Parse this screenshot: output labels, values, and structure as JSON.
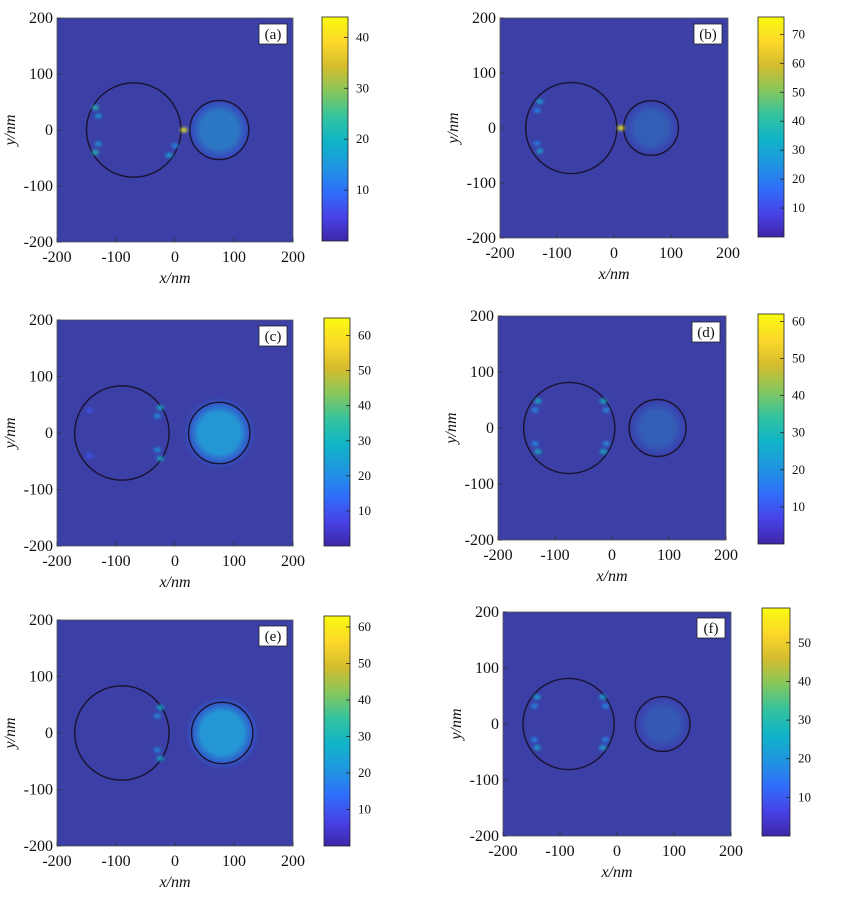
{
  "chart_data": [
    {
      "type": "heatmap",
      "panel": "(a)",
      "xlabel": "x/nm",
      "ylabel": "y/nm",
      "xlim": [
        -200,
        200
      ],
      "ylim": [
        -200,
        200
      ],
      "xticks": [
        -200,
        -100,
        0,
        100,
        200
      ],
      "yticks": [
        -200,
        -100,
        0,
        100,
        200
      ],
      "colorbar": {
        "min": 0,
        "max": 44,
        "ticks": [
          10,
          20,
          30,
          40
        ]
      },
      "circles": [
        {
          "cx": -70,
          "cy": 0,
          "r": 80
        },
        {
          "cx": 75,
          "cy": 0,
          "r": 50
        }
      ],
      "hotspots": [
        {
          "x": -135,
          "y": 40,
          "v": 22
        },
        {
          "x": -130,
          "y": 25,
          "v": 16
        },
        {
          "x": -135,
          "y": -40,
          "v": 22
        },
        {
          "x": -130,
          "y": -25,
          "v": 16
        },
        {
          "x": -10,
          "y": -45,
          "v": 18
        },
        {
          "x": 0,
          "y": -28,
          "v": 14
        },
        {
          "x": 15,
          "y": 0,
          "v": 43
        }
      ],
      "glow": 9
    },
    {
      "type": "heatmap",
      "panel": "(b)",
      "xlabel": "x/nm",
      "ylabel": "y/nm",
      "xlim": [
        -200,
        200
      ],
      "ylim": [
        -200,
        200
      ],
      "xticks": [
        -200,
        -100,
        0,
        100,
        200
      ],
      "yticks": [
        -200,
        -100,
        0,
        100,
        200
      ],
      "colorbar": {
        "min": 0,
        "max": 76,
        "ticks": [
          10,
          20,
          30,
          40,
          50,
          60,
          70
        ]
      },
      "circles": [
        {
          "cx": -75,
          "cy": 0,
          "r": 80
        },
        {
          "cx": 65,
          "cy": 0,
          "r": 48
        }
      ],
      "hotspots": [
        {
          "x": -130,
          "y": 48,
          "v": 30
        },
        {
          "x": -135,
          "y": 32,
          "v": 22
        },
        {
          "x": -130,
          "y": -42,
          "v": 30
        },
        {
          "x": -135,
          "y": -28,
          "v": 22
        },
        {
          "x": 12,
          "y": 0,
          "v": 75
        }
      ],
      "glow": 5
    },
    {
      "type": "heatmap",
      "panel": "(c)",
      "xlabel": "x/nm",
      "ylabel": "y/nm",
      "xlim": [
        -200,
        200
      ],
      "ylim": [
        -200,
        200
      ],
      "xticks": [
        -200,
        -100,
        0,
        100,
        200
      ],
      "yticks": [
        -200,
        -100,
        0,
        100,
        200
      ],
      "colorbar": {
        "min": 0,
        "max": 65,
        "ticks": [
          10,
          20,
          30,
          40,
          50,
          60
        ]
      },
      "circles": [
        {
          "cx": -90,
          "cy": 0,
          "r": 80
        },
        {
          "cx": 75,
          "cy": 0,
          "r": 52
        }
      ],
      "hotspots": [
        {
          "x": -25,
          "y": 45,
          "v": 30
        },
        {
          "x": -30,
          "y": 30,
          "v": 22
        },
        {
          "x": -25,
          "y": -45,
          "v": 30
        },
        {
          "x": -30,
          "y": -30,
          "v": 22
        },
        {
          "x": -145,
          "y": 40,
          "v": 10
        },
        {
          "x": -145,
          "y": -40,
          "v": 10
        }
      ],
      "glow": 14
    },
    {
      "type": "heatmap",
      "panel": "(d)",
      "xlabel": "x/nm",
      "ylabel": "y/nm",
      "xlim": [
        -200,
        200
      ],
      "ylim": [
        -200,
        200
      ],
      "xticks": [
        -200,
        -100,
        0,
        100,
        200
      ],
      "yticks": [
        -200,
        -100,
        0,
        100,
        200
      ],
      "colorbar": {
        "min": 0,
        "max": 62,
        "ticks": [
          10,
          20,
          30,
          40,
          50,
          60
        ]
      },
      "circles": [
        {
          "cx": -75,
          "cy": 0,
          "r": 80
        },
        {
          "cx": 80,
          "cy": 0,
          "r": 50
        }
      ],
      "hotspots": [
        {
          "x": -130,
          "y": 48,
          "v": 28
        },
        {
          "x": -135,
          "y": 32,
          "v": 20
        },
        {
          "x": -130,
          "y": -42,
          "v": 28
        },
        {
          "x": -135,
          "y": -28,
          "v": 20
        },
        {
          "x": -15,
          "y": 48,
          "v": 28
        },
        {
          "x": -10,
          "y": 32,
          "v": 20
        },
        {
          "x": -15,
          "y": -42,
          "v": 28
        },
        {
          "x": -10,
          "y": -28,
          "v": 20
        }
      ],
      "glow": 5
    },
    {
      "type": "heatmap",
      "panel": "(e)",
      "xlabel": "x/nm",
      "ylabel": "y/nm",
      "xlim": [
        -200,
        200
      ],
      "ylim": [
        -200,
        200
      ],
      "xticks": [
        -200,
        -100,
        0,
        100,
        200
      ],
      "yticks": [
        -200,
        -100,
        0,
        100,
        200
      ],
      "colorbar": {
        "min": 0,
        "max": 63,
        "ticks": [
          10,
          20,
          30,
          40,
          50,
          60
        ]
      },
      "circles": [
        {
          "cx": -90,
          "cy": 0,
          "r": 80
        },
        {
          "cx": 80,
          "cy": 0,
          "r": 52
        }
      ],
      "hotspots": [
        {
          "x": -25,
          "y": 45,
          "v": 28
        },
        {
          "x": -30,
          "y": 30,
          "v": 20
        },
        {
          "x": -25,
          "y": -45,
          "v": 28
        },
        {
          "x": -30,
          "y": -30,
          "v": 20
        }
      ],
      "glow": 16
    },
    {
      "type": "heatmap",
      "panel": "(f)",
      "xlabel": "x/nm",
      "ylabel": "y/nm",
      "xlim": [
        -200,
        200
      ],
      "ylim": [
        -200,
        200
      ],
      "xticks": [
        -200,
        -100,
        0,
        100,
        200
      ],
      "yticks": [
        -200,
        -100,
        0,
        100,
        200
      ],
      "colorbar": {
        "min": 0,
        "max": 59,
        "ticks": [
          10,
          20,
          30,
          40,
          50
        ]
      },
      "circles": [
        {
          "cx": -85,
          "cy": 0,
          "r": 80
        },
        {
          "cx": 80,
          "cy": 0,
          "r": 48
        }
      ],
      "hotspots": [
        {
          "x": -140,
          "y": 48,
          "v": 24
        },
        {
          "x": -145,
          "y": 32,
          "v": 18
        },
        {
          "x": -140,
          "y": -42,
          "v": 24
        },
        {
          "x": -145,
          "y": -28,
          "v": 18
        },
        {
          "x": -25,
          "y": 48,
          "v": 24
        },
        {
          "x": -20,
          "y": 32,
          "v": 18
        },
        {
          "x": -25,
          "y": -42,
          "v": 24
        },
        {
          "x": -20,
          "y": -28,
          "v": 18
        }
      ],
      "glow": 4
    }
  ],
  "colors": {
    "background": "#3b3fa6",
    "colormap": [
      "#3e26a8",
      "#4743e8",
      "#2f6ffa",
      "#1f96e0",
      "#10b4c8",
      "#34c39e",
      "#86c75c",
      "#d4bc2e",
      "#fbd82a",
      "#f9fb0e"
    ],
    "circle_stroke": "#1a1230"
  }
}
